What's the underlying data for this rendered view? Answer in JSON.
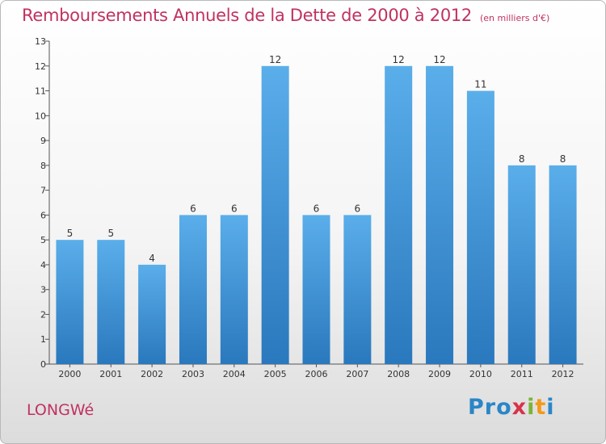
{
  "header": {
    "title": "Remboursements Annuels de la Dette de 2000 à 2012",
    "unit": "(en milliers d'€)"
  },
  "footer": {
    "commune": "LONGWé",
    "logo_parts": [
      "Pro",
      "x",
      "i",
      "t",
      "i"
    ]
  },
  "colors": {
    "bar_light": "#5aaeea",
    "bar_dark": "#2a78bd",
    "title": "#c0325f"
  },
  "chart_data": {
    "type": "bar",
    "title": "Remboursements Annuels de la Dette de 2000 à 2012",
    "subtitle": "(en milliers d'€)",
    "categories": [
      "2000",
      "2001",
      "2002",
      "2003",
      "2004",
      "2005",
      "2006",
      "2007",
      "2008",
      "2009",
      "2010",
      "2011",
      "2012"
    ],
    "values": [
      5,
      5,
      4,
      6,
      6,
      12,
      6,
      6,
      12,
      12,
      11,
      8,
      8
    ],
    "data_labels": [
      "5",
      "5",
      "4",
      "6",
      "6",
      "12",
      "6",
      "6",
      "12",
      "12",
      "11",
      "8",
      "8"
    ],
    "yticks": [
      0,
      1,
      2,
      3,
      4,
      5,
      6,
      7,
      8,
      9,
      10,
      11,
      12,
      13
    ],
    "ylim": [
      0,
      13
    ],
    "xlabel": "",
    "ylabel": "",
    "grid": false,
    "legend": "none"
  }
}
